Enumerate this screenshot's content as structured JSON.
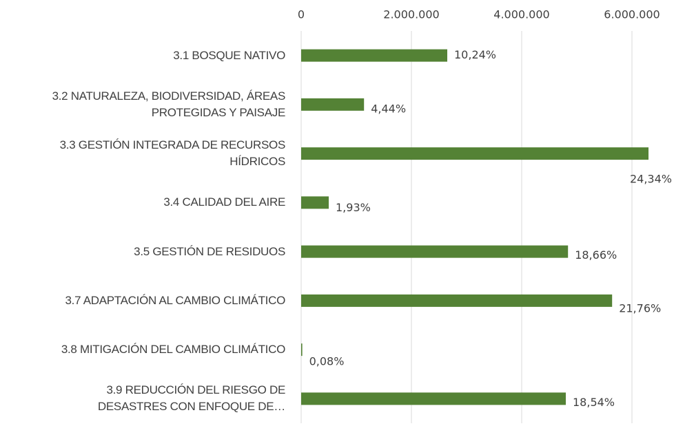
{
  "chart_data": {
    "type": "bar",
    "orientation": "horizontal",
    "categories": [
      "3.1 BOSQUE NATIVO",
      "3.2 NATURALEZA, BIODIVERSIDAD, ÁREAS\nPROTEGIDAS Y PAISAJE",
      "3.3 GESTIÓN INTEGRADA DE RECURSOS\nHÍDRICOS",
      "3.4 CALIDAD DEL AIRE",
      "3.5 GESTIÓN DE RESIDUOS",
      "3.7 ADAPTACIÓN AL CAMBIO CLIMÁTICO",
      "3.8 MITIGACIÓN DEL CAMBIO CLIMÁTICO",
      "3.9 REDUCCIÓN DEL RIESGO DE\nDESASTRES CON ENFOQUE DE…"
    ],
    "values": [
      2650000,
      1140000,
      6300000,
      500000,
      4840000,
      5640000,
      20000,
      4800000
    ],
    "percents": [
      10.24,
      4.44,
      24.34,
      1.93,
      18.66,
      21.76,
      0.08,
      18.54
    ],
    "percent_labels": [
      "10,24%",
      "4,44%",
      "24,34%",
      "1,93%",
      "18,66%",
      "21,76%",
      "0,08%",
      "18,54%"
    ],
    "color": "#548235",
    "xlim": [
      0,
      6750000
    ],
    "xticks": [
      0,
      {
        "value": 2000000,
        "label": "2.000.000"
      },
      {
        "value": 4000000,
        "label": "4.000.000"
      },
      {
        "value": 6000000,
        "label": "6.000.000"
      }
    ],
    "grid": true
  }
}
